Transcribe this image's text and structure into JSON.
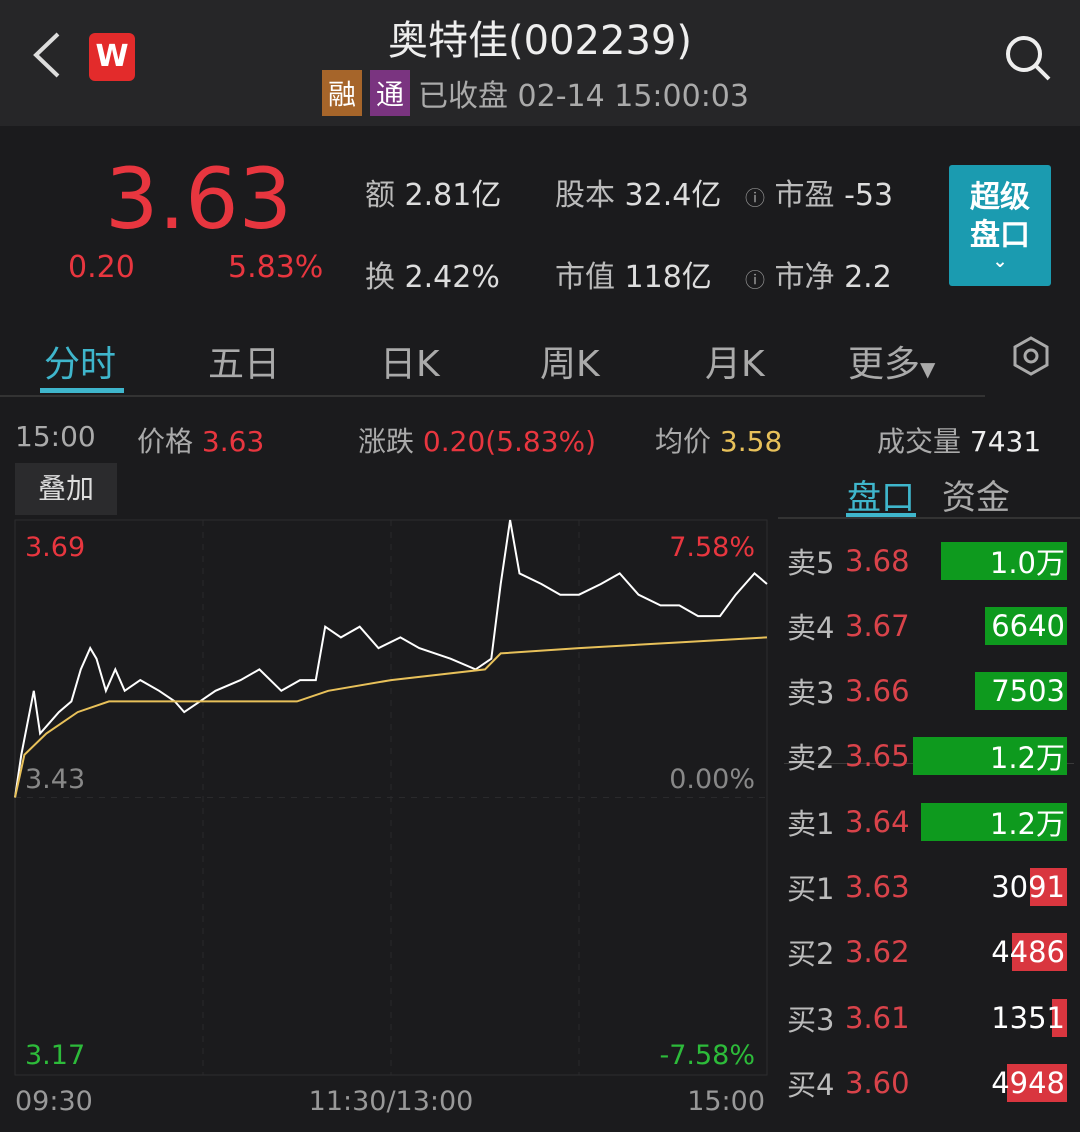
{
  "header": {
    "title": "奥特佳(002239)",
    "tag_margin": "融",
    "tag_connect": "通",
    "status": "已收盘 02-14 15:00:03",
    "logo": "W",
    "icons": [
      "back-chevron-icon",
      "search-icon"
    ]
  },
  "quote": {
    "price": "3.63",
    "change": "0.20",
    "change_pct": "5.83%",
    "stats": [
      {
        "label": "额",
        "value": "2.81亿"
      },
      {
        "label": "股本",
        "value": "32.4亿"
      },
      {
        "label": "市盈",
        "value": "-53"
      },
      {
        "label": "换",
        "value": "2.42%"
      },
      {
        "label": "市值",
        "value": "118亿"
      },
      {
        "label": "市净",
        "value": "2.2"
      }
    ],
    "super_button": "超级盘口"
  },
  "tabs": [
    {
      "label": "分时",
      "active": true
    },
    {
      "label": "五日"
    },
    {
      "label": "日K"
    },
    {
      "label": "周K"
    },
    {
      "label": "月K"
    },
    {
      "label": "更多"
    }
  ],
  "info": {
    "time": "15:00",
    "price_label": "价格",
    "price": "3.63",
    "chg_label": "涨跌",
    "chg": "0.20(5.83%)",
    "avg_label": "均价",
    "avg": "3.58",
    "vol_label": "成交量",
    "vol": "7431"
  },
  "overlay_button": "叠加",
  "side_tabs": [
    {
      "label": "盘口",
      "active": true
    },
    {
      "label": "资金"
    }
  ],
  "colors": {
    "up": "#e8363f",
    "down": "#2dbb3a",
    "accent": "#3fb6cc",
    "avg_line": "#e8c15a",
    "price_line": "#ffffff"
  },
  "order_book": [
    {
      "name": "卖5",
      "price": "3.68",
      "volume": "1.0万",
      "level": 0.82,
      "side": "ask"
    },
    {
      "name": "卖4",
      "price": "3.67",
      "volume": "6640",
      "level": 0.53,
      "side": "ask"
    },
    {
      "name": "卖3",
      "price": "3.66",
      "volume": "7503",
      "level": 0.6,
      "side": "ask"
    },
    {
      "name": "卖2",
      "price": "3.65",
      "volume": "1.2万",
      "level": 1.0,
      "side": "ask"
    },
    {
      "name": "卖1",
      "price": "3.64",
      "volume": "1.2万",
      "level": 0.95,
      "side": "ask"
    },
    {
      "name": "买1",
      "price": "3.63",
      "volume": "3091",
      "level": 0.24,
      "side": "bid"
    },
    {
      "name": "买2",
      "price": "3.62",
      "volume": "4486",
      "level": 0.36,
      "side": "bid"
    },
    {
      "name": "买3",
      "price": "3.61",
      "volume": "1351",
      "level": 0.1,
      "side": "bid"
    },
    {
      "name": "买4",
      "price": "3.60",
      "volume": "4948",
      "level": 0.39,
      "side": "bid"
    }
  ],
  "chart_data": {
    "type": "line",
    "prev_close": 3.43,
    "ylim": [
      3.17,
      3.69
    ],
    "y_labels_left": [
      "3.69",
      "3.43",
      "3.17"
    ],
    "y_labels_right": [
      "7.58%",
      "0.00%",
      "-7.58%"
    ],
    "x_labels": [
      "09:30",
      "11:30/13:00",
      "15:00"
    ],
    "series": [
      {
        "name": "价格",
        "points": [
          [
            "09:30",
            3.43
          ],
          [
            "09:32",
            3.47
          ],
          [
            "09:36",
            3.53
          ],
          [
            "09:38",
            3.49
          ],
          [
            "09:41",
            3.5
          ],
          [
            "09:44",
            3.51
          ],
          [
            "09:48",
            3.52
          ],
          [
            "09:51",
            3.55
          ],
          [
            "09:54",
            3.57
          ],
          [
            "09:56",
            3.56
          ],
          [
            "09:59",
            3.53
          ],
          [
            "10:02",
            3.55
          ],
          [
            "10:05",
            3.53
          ],
          [
            "10:10",
            3.54
          ],
          [
            "10:16",
            3.53
          ],
          [
            "10:21",
            3.52
          ],
          [
            "10:24",
            3.51
          ],
          [
            "10:29",
            3.52
          ],
          [
            "10:34",
            3.53
          ],
          [
            "10:42",
            3.54
          ],
          [
            "10:48",
            3.55
          ],
          [
            "10:55",
            3.53
          ],
          [
            "11:01",
            3.54
          ],
          [
            "11:06",
            3.54
          ],
          [
            "11:09",
            3.59
          ],
          [
            "11:14",
            3.58
          ],
          [
            "11:20",
            3.59
          ],
          [
            "11:26",
            3.57
          ],
          [
            "13:03",
            3.58
          ],
          [
            "13:09",
            3.57
          ],
          [
            "13:19",
            3.56
          ],
          [
            "13:27",
            3.55
          ],
          [
            "13:32",
            3.56
          ],
          [
            "13:35",
            3.63
          ],
          [
            "13:38",
            3.69
          ],
          [
            "13:41",
            3.64
          ],
          [
            "13:48",
            3.63
          ],
          [
            "13:54",
            3.62
          ],
          [
            "14:00",
            3.62
          ],
          [
            "14:07",
            3.63
          ],
          [
            "14:13",
            3.64
          ],
          [
            "14:19",
            3.62
          ],
          [
            "14:26",
            3.61
          ],
          [
            "14:32",
            3.61
          ],
          [
            "14:38",
            3.6
          ],
          [
            "14:45",
            3.6
          ],
          [
            "14:50",
            3.62
          ],
          [
            "14:56",
            3.64
          ],
          [
            "15:00",
            3.63
          ]
        ]
      },
      {
        "name": "均价",
        "points": [
          [
            "09:30",
            3.43
          ],
          [
            "09:33",
            3.47
          ],
          [
            "09:40",
            3.49
          ],
          [
            "09:50",
            3.51
          ],
          [
            "10:00",
            3.52
          ],
          [
            "10:30",
            3.52
          ],
          [
            "11:00",
            3.52
          ],
          [
            "11:10",
            3.53
          ],
          [
            "11:30",
            3.54
          ],
          [
            "13:30",
            3.55
          ],
          [
            "13:35",
            3.565
          ],
          [
            "14:00",
            3.57
          ],
          [
            "14:30",
            3.575
          ],
          [
            "15:00",
            3.58
          ]
        ]
      }
    ]
  }
}
